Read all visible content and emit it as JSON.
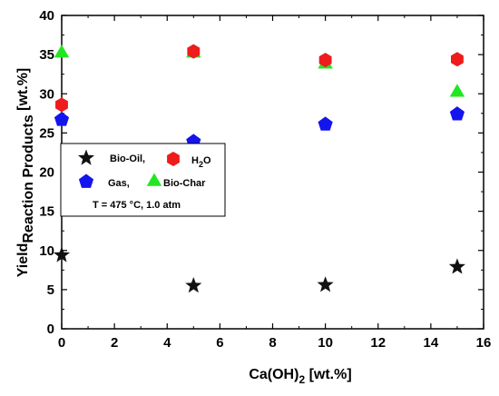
{
  "chart_data": {
    "type": "scatter",
    "xlabel": "Ca(OH)",
    "xlabel_sub": "2",
    "xlabel_suffix": " [wt.%]",
    "ylabel_part1": "Yield",
    "ylabel_sub": "Reaction Products",
    "ylabel_part2": " [wt.%]",
    "xlim": [
      0,
      16
    ],
    "ylim": [
      0,
      40
    ],
    "xticks": [
      "0",
      "2",
      "4",
      "6",
      "8",
      "10",
      "12",
      "14",
      "16"
    ],
    "yticks": [
      "0",
      "5",
      "10",
      "15",
      "20",
      "25",
      "30",
      "35",
      "40"
    ],
    "grid": false,
    "legend_position": "center-left",
    "series": [
      {
        "name": "Bio-Oil,",
        "marker": "star",
        "color": "#111111",
        "x": [
          0,
          5,
          10,
          15
        ],
        "y": [
          9.4,
          5.5,
          5.6,
          7.9
        ]
      },
      {
        "name": "H2O",
        "marker": "hexagon",
        "color": "#ee1c1c",
        "x": [
          0,
          5,
          10,
          15
        ],
        "y": [
          28.6,
          35.4,
          34.3,
          34.4
        ]
      },
      {
        "name": "Gas,",
        "marker": "pentagon",
        "color": "#1414ee",
        "x": [
          0,
          5,
          10,
          15
        ],
        "y": [
          26.7,
          23.9,
          26.1,
          27.4
        ]
      },
      {
        "name": "Bio-Char",
        "marker": "triangle",
        "color": "#22e622",
        "x": [
          0,
          5,
          10,
          15
        ],
        "y": [
          35.4,
          35.4,
          34.0,
          30.4
        ]
      }
    ],
    "legend": {
      "bio_oil": "Bio-Oil,",
      "h2o_main": "H",
      "h2o_sub": "2",
      "h2o_tail": "O",
      "gas": "Gas,",
      "bio_char": "Bio-Char",
      "conditions": "T = 475 °C, 1.0 atm"
    }
  }
}
